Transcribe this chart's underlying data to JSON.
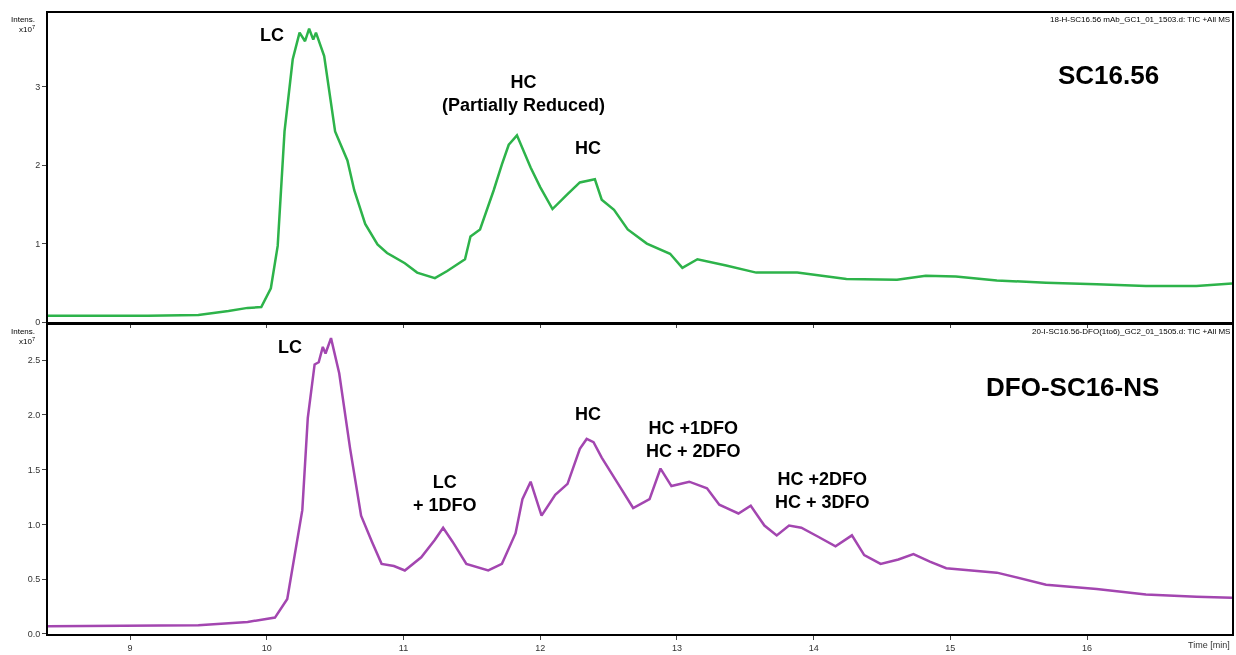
{
  "chart_data": [
    {
      "type": "line",
      "title": "SC16.56",
      "subtitle": "18-H-SC16.56 mAb_GC1_01_1503.d: TIC +All MS",
      "ylabel": "Intens.\nx10$^{7}$",
      "xlim": [
        8.4,
        17.06
      ],
      "ylim": [
        0,
        3.94
      ],
      "yticks": [
        0,
        1,
        2,
        3
      ],
      "tick_labels": "y",
      "grid": false,
      "marker": "none",
      "line_style": "solid",
      "series": [
        {
          "color": "#2db34a",
          "x": [
            8.4,
            9.13,
            9.5,
            9.72,
            9.86,
            9.96,
            10.03,
            10.08,
            10.13,
            10.19,
            10.24,
            10.28,
            10.31,
            10.34,
            10.36,
            10.42,
            10.5,
            10.59,
            10.64,
            10.72,
            10.81,
            10.88,
            11.01,
            11.1,
            11.23,
            11.32,
            11.45,
            11.49,
            11.56,
            11.66,
            11.72,
            11.77,
            11.83,
            11.93,
            12.0,
            12.09,
            12.2,
            12.29,
            12.4,
            12.45,
            12.54,
            12.64,
            12.78,
            12.95,
            13.04,
            13.15,
            13.36,
            13.58,
            13.88,
            14.24,
            14.61,
            14.82,
            15.04,
            15.34,
            15.7,
            16.07,
            16.43,
            16.8,
            17.06
          ],
          "values": [
            0.08,
            0.08,
            0.09,
            0.14,
            0.18,
            0.19,
            0.43,
            0.97,
            2.43,
            3.35,
            3.69,
            3.58,
            3.74,
            3.6,
            3.69,
            3.39,
            2.43,
            2.06,
            1.68,
            1.25,
            0.99,
            0.88,
            0.75,
            0.63,
            0.56,
            0.65,
            0.8,
            1.09,
            1.18,
            1.68,
            2.01,
            2.26,
            2.38,
            1.97,
            1.72,
            1.44,
            1.63,
            1.78,
            1.82,
            1.56,
            1.43,
            1.18,
            1.0,
            0.87,
            0.69,
            0.8,
            0.72,
            0.63,
            0.63,
            0.55,
            0.54,
            0.59,
            0.58,
            0.53,
            0.5,
            0.48,
            0.46,
            0.46,
            0.49
          ]
        }
      ],
      "annotations": [
        "LC",
        "HC\n(Partially Reduced)",
        "HC"
      ]
    },
    {
      "type": "line",
      "title": "DFO-SC16-NS",
      "subtitle": "20-I-SC16.56-DFO(1to6)_GC2_01_1505.d: TIC +All MS",
      "ylabel": "Intens.\nx10$^{7}$",
      "xlabel": "Time [min]",
      "xlim": [
        8.4,
        17.06
      ],
      "xticks": [
        9,
        10,
        11,
        12,
        13,
        14,
        15,
        16
      ],
      "ylim": [
        0,
        2.82
      ],
      "yticks": [
        {
          "value": 0,
          "label": "0.0"
        },
        {
          "value": 0.5,
          "label": "0.5"
        },
        {
          "value": 1,
          "label": "1.0"
        },
        {
          "value": 1.5,
          "label": "1.5"
        },
        {
          "value": 2,
          "label": "2.0"
        },
        {
          "value": 2.5,
          "label": "2.5"
        }
      ],
      "grid": false,
      "marker": "none",
      "line_style": "solid",
      "series": [
        {
          "color": "#a346b0",
          "x": [
            8.4,
            9.5,
            9.86,
            10.06,
            10.15,
            10.26,
            10.3,
            10.35,
            10.38,
            10.41,
            10.43,
            10.47,
            10.53,
            10.61,
            10.69,
            10.77,
            10.84,
            10.93,
            11.01,
            11.13,
            11.23,
            11.29,
            11.36,
            11.46,
            11.62,
            11.72,
            11.82,
            11.87,
            11.93,
            12.01,
            12.11,
            12.2,
            12.29,
            12.34,
            12.39,
            12.45,
            12.57,
            12.68,
            12.8,
            12.88,
            12.96,
            13.09,
            13.22,
            13.31,
            13.45,
            13.54,
            13.64,
            13.73,
            13.82,
            13.91,
            14.03,
            14.16,
            14.28,
            14.37,
            14.49,
            14.62,
            14.73,
            14.85,
            14.97,
            15.34,
            15.7,
            16.07,
            16.43,
            16.8,
            17.06
          ],
          "values": [
            0.07,
            0.08,
            0.11,
            0.15,
            0.32,
            1.13,
            1.97,
            2.46,
            2.48,
            2.62,
            2.56,
            2.7,
            2.38,
            1.69,
            1.08,
            0.84,
            0.64,
            0.62,
            0.58,
            0.7,
            0.86,
            0.97,
            0.84,
            0.64,
            0.58,
            0.64,
            0.92,
            1.23,
            1.39,
            1.08,
            1.27,
            1.37,
            1.69,
            1.78,
            1.75,
            1.61,
            1.37,
            1.15,
            1.23,
            1.51,
            1.35,
            1.39,
            1.33,
            1.18,
            1.1,
            1.17,
            0.99,
            0.9,
            0.99,
            0.97,
            0.89,
            0.8,
            0.9,
            0.72,
            0.64,
            0.68,
            0.73,
            0.66,
            0.6,
            0.56,
            0.45,
            0.41,
            0.36,
            0.34,
            0.33
          ]
        }
      ],
      "annotations": [
        "LC",
        "LC\n+ 1DFO",
        "HC",
        "HC +1DFO\nHC + 2DFO",
        "HC +2DFO\nHC + 3DFO"
      ]
    }
  ]
}
